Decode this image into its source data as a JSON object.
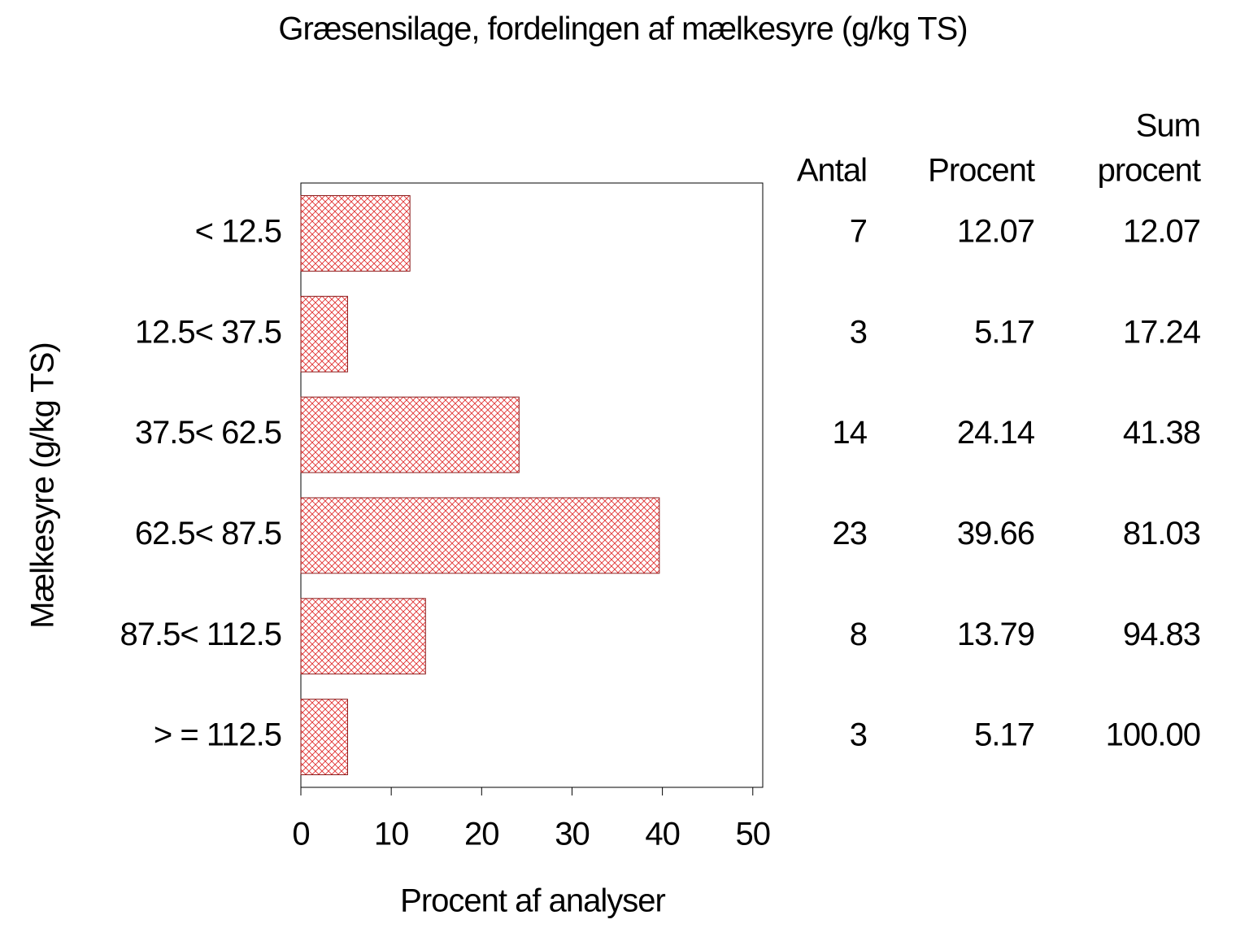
{
  "chart_data": {
    "type": "bar",
    "orientation": "horizontal",
    "title": "Græsensilage,  fordelingen  af  mælkesyre  (g/kg  TS)",
    "x_label": "Procent  af  analyser",
    "y_label": "Mælkesyre  (g/kg  TS)",
    "categories": [
      "< 12.5",
      "12.5< 37.5",
      "37.5< 62.5",
      "62.5< 87.5",
      "87.5< 112.5",
      "> = 112.5"
    ],
    "values": [
      12.07,
      5.17,
      24.14,
      39.66,
      13.79,
      5.17
    ],
    "color": "#e03030",
    "xlim": [
      0,
      51.1
    ],
    "xticks": [
      0,
      10,
      20,
      30,
      40,
      50
    ],
    "table": {
      "headers": [
        [
          "Antal"
        ],
        [
          "Procent"
        ],
        [
          "Sum",
          "procent"
        ]
      ],
      "counts": [
        7,
        3,
        14,
        23,
        8,
        3
      ],
      "cumulative": [
        "12.07",
        "17.24",
        "41.38",
        "81.03",
        "94.83",
        "100.00"
      ]
    }
  }
}
